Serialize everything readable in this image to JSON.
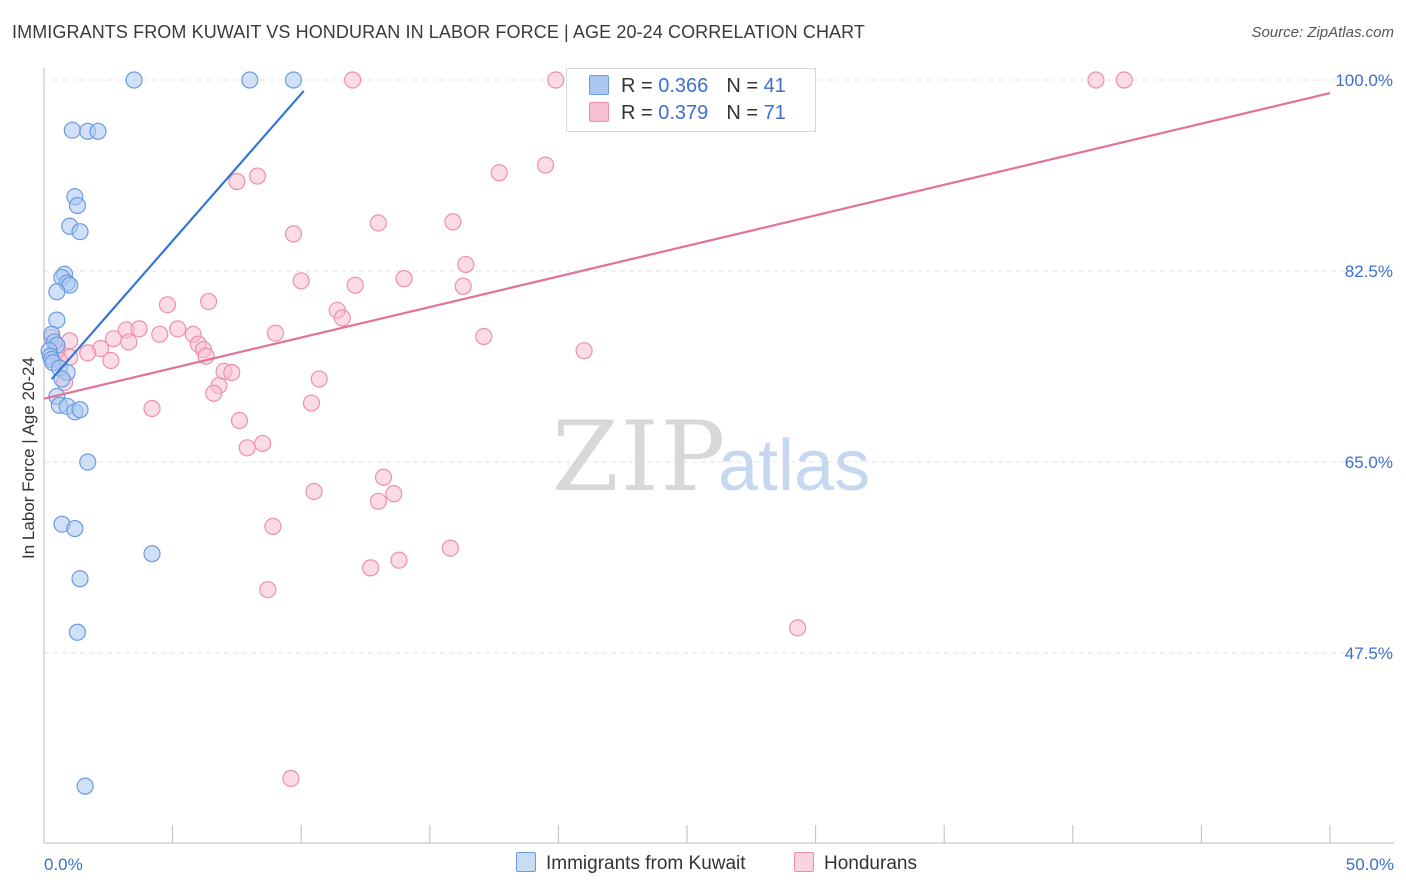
{
  "title": "IMMIGRANTS FROM KUWAIT VS HONDURAN IN LABOR FORCE | AGE 20-24 CORRELATION CHART",
  "source": "Source: ZipAtlas.com",
  "watermark": {
    "zip": "ZIP",
    "atlas": "atlas"
  },
  "colors": {
    "kuwait_fill": "#a9c8f0",
    "kuwait_stroke": "#6a9be0",
    "kuwait_line": "#3576d4",
    "hond_fill": "#f7c0d2",
    "hond_stroke": "#ec8fae",
    "hond_line": "#e3719a",
    "tick_label": "#3d6fd0",
    "grid": "#e3e3e3"
  },
  "legend": {
    "kuwait": {
      "r_label": "R = ",
      "r_value": "0.366",
      "n_label": "N = ",
      "n_value": "41"
    },
    "hond": {
      "r_label": "R = ",
      "r_value": "0.379",
      "n_label": "N = ",
      "n_value": "71"
    }
  },
  "bottom_legend": {
    "kuwait": "Immigrants from Kuwait",
    "hond": "Hondurans"
  },
  "chart_data": {
    "type": "scatter",
    "title": "IMMIGRANTS FROM KUWAIT VS HONDURAN IN LABOR FORCE | AGE 20-24 CORRELATION CHART",
    "xlabel": "",
    "ylabel": "In Labor Force | Age 20-24",
    "xlim": [
      0,
      50
    ],
    "ylim": [
      30,
      101.5
    ],
    "x_tick_labels": [
      {
        "value": 0,
        "label": "0.0%"
      },
      {
        "value": 50,
        "label": "50.0%"
      }
    ],
    "y_tick_labels": [
      {
        "value": 100,
        "label": "100.0%"
      },
      {
        "value": 82.5,
        "label": "82.5%"
      },
      {
        "value": 65,
        "label": "65.0%"
      },
      {
        "value": 47.5,
        "label": "47.5%"
      }
    ],
    "grid": true,
    "series": [
      {
        "name": "Immigrants from Kuwait",
        "points": [
          [
            3.5,
            100
          ],
          [
            8.0,
            100
          ],
          [
            9.7,
            100
          ],
          [
            1.1,
            95.4
          ],
          [
            1.7,
            95.3
          ],
          [
            2.1,
            95.3
          ],
          [
            1.2,
            89.3
          ],
          [
            1.3,
            88.5
          ],
          [
            1.0,
            86.6
          ],
          [
            1.4,
            86.1
          ],
          [
            0.8,
            82.2
          ],
          [
            0.7,
            81.9
          ],
          [
            0.9,
            81.4
          ],
          [
            1.0,
            81.2
          ],
          [
            0.5,
            80.6
          ],
          [
            0.5,
            78.0
          ],
          [
            0.3,
            76.7
          ],
          [
            0.4,
            76.0
          ],
          [
            0.5,
            75.7
          ],
          [
            0.2,
            75.2
          ],
          [
            0.25,
            74.7
          ],
          [
            0.3,
            74.4
          ],
          [
            0.35,
            74.1
          ],
          [
            0.6,
            73.6
          ],
          [
            0.9,
            73.2
          ],
          [
            0.7,
            72.6
          ],
          [
            0.5,
            71.0
          ],
          [
            0.6,
            70.2
          ],
          [
            0.9,
            70.1
          ],
          [
            1.2,
            69.6
          ],
          [
            1.4,
            69.8
          ],
          [
            1.7,
            65.0
          ],
          [
            0.7,
            59.3
          ],
          [
            1.2,
            58.9
          ],
          [
            4.2,
            56.6
          ],
          [
            1.4,
            54.3
          ],
          [
            1.3,
            49.4
          ],
          [
            1.6,
            35.3
          ]
        ]
      },
      {
        "name": "Hondurans",
        "points": [
          [
            12.0,
            100
          ],
          [
            19.9,
            100
          ],
          [
            23.6,
            100
          ],
          [
            28.6,
            100
          ],
          [
            40.9,
            100
          ],
          [
            42.0,
            100
          ],
          [
            17.7,
            91.5
          ],
          [
            19.5,
            92.2
          ],
          [
            7.5,
            90.7
          ],
          [
            8.3,
            91.2
          ],
          [
            13.0,
            86.9
          ],
          [
            15.9,
            87.0
          ],
          [
            9.7,
            85.9
          ],
          [
            16.4,
            83.1
          ],
          [
            10.0,
            81.6
          ],
          [
            12.1,
            81.2
          ],
          [
            14.0,
            81.8
          ],
          [
            16.3,
            81.1
          ],
          [
            6.4,
            79.7
          ],
          [
            4.8,
            79.4
          ],
          [
            11.4,
            78.9
          ],
          [
            11.6,
            78.2
          ],
          [
            3.2,
            77.1
          ],
          [
            3.7,
            77.2
          ],
          [
            4.5,
            76.7
          ],
          [
            5.2,
            77.2
          ],
          [
            5.8,
            76.7
          ],
          [
            9.0,
            76.8
          ],
          [
            17.1,
            76.5
          ],
          [
            21.0,
            75.2
          ],
          [
            2.7,
            76.3
          ],
          [
            3.3,
            76.0
          ],
          [
            6.0,
            75.8
          ],
          [
            6.2,
            75.3
          ],
          [
            1.0,
            76.1
          ],
          [
            0.3,
            76.4
          ],
          [
            0.5,
            75.1
          ],
          [
            2.2,
            75.4
          ],
          [
            1.7,
            75.0
          ],
          [
            2.6,
            74.3
          ],
          [
            1.0,
            74.6
          ],
          [
            6.3,
            74.7
          ],
          [
            0.6,
            74.3
          ],
          [
            7.0,
            73.3
          ],
          [
            7.3,
            73.2
          ],
          [
            10.7,
            72.6
          ],
          [
            0.8,
            72.3
          ],
          [
            6.8,
            72.0
          ],
          [
            6.6,
            71.3
          ],
          [
            10.4,
            70.4
          ],
          [
            4.2,
            69.9
          ],
          [
            7.6,
            68.8
          ],
          [
            7.9,
            66.3
          ],
          [
            8.5,
            66.7
          ],
          [
            13.2,
            63.6
          ],
          [
            10.5,
            62.3
          ],
          [
            13.6,
            62.1
          ],
          [
            13.0,
            61.4
          ],
          [
            8.9,
            59.1
          ],
          [
            15.8,
            57.1
          ],
          [
            12.7,
            55.3
          ],
          [
            13.8,
            56.0
          ],
          [
            8.7,
            53.3
          ],
          [
            29.3,
            49.8
          ],
          [
            9.6,
            36.0
          ]
        ]
      }
    ],
    "trendlines": [
      {
        "series": "Immigrants from Kuwait",
        "x": [
          0.3,
          10.1
        ],
        "y": [
          72.6,
          99.0
        ]
      },
      {
        "series": "Hondurans",
        "x": [
          0,
          50
        ],
        "y": [
          70.8,
          98.8
        ]
      }
    ]
  }
}
